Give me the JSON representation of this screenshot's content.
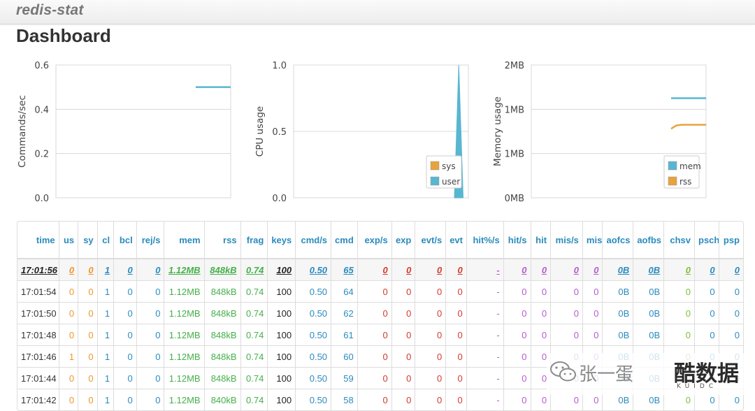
{
  "navbar": {
    "brand": "redis-stat"
  },
  "page": {
    "title": "Dashboard"
  },
  "colors": {
    "series_blue": "#58b6d0",
    "series_orange": "#e8a33d",
    "grid": "#d8d8d8",
    "header_blue": "#2a8bbd",
    "green": "#45b04a",
    "red": "#d33a2c",
    "purple": "#b45cd0",
    "orange": "#f0952a"
  },
  "chart_data": [
    {
      "type": "line",
      "ylabel": "Commands/sec",
      "ylim": [
        0,
        0.6
      ],
      "y_ticks": [
        "0.0",
        "0.2",
        "0.4",
        "0.6"
      ],
      "y_tick_values": [
        0,
        0.2,
        0.4,
        0.6
      ],
      "series": [
        {
          "color": "#58b6d0",
          "x": [
            0.8,
            0.85,
            0.9,
            0.95,
            1.0
          ],
          "values": [
            0.5,
            0.5,
            0.5,
            0.5,
            0.5
          ]
        }
      ],
      "legend": []
    },
    {
      "type": "area",
      "ylabel": "CPU usage",
      "ylim": [
        0,
        1.0
      ],
      "y_ticks": [
        "0.0",
        "0.5",
        "1.0"
      ],
      "y_tick_values": [
        0,
        0.5,
        1.0
      ],
      "series": [
        {
          "name": "sys",
          "color": "#e8a33d",
          "x": [
            0.92,
            0.945,
            0.97
          ],
          "values": [
            0,
            0,
            0
          ]
        },
        {
          "name": "user",
          "color": "#58b6d0",
          "x": [
            0.92,
            0.945,
            0.97
          ],
          "values": [
            0,
            1.0,
            0
          ]
        }
      ],
      "legend": [
        "sys",
        "user"
      ],
      "legend_position": "bottom-right"
    },
    {
      "type": "line",
      "ylabel": "Memory usage",
      "ylim": [
        0,
        2
      ],
      "y_ticks": [
        "0MB",
        "1MB",
        "1MB",
        "2MB"
      ],
      "y_tick_values": [
        0,
        0.667,
        1.333,
        2
      ],
      "series": [
        {
          "name": "mem",
          "color": "#58b6d0",
          "x": [
            0.8,
            0.85,
            0.9,
            0.95,
            1.0
          ],
          "values": [
            1.5,
            1.5,
            1.5,
            1.5,
            1.5
          ]
        },
        {
          "name": "rss",
          "color": "#e8a33d",
          "x": [
            0.8,
            0.83,
            0.86,
            0.9,
            0.95,
            1.0
          ],
          "values": [
            1.04,
            1.09,
            1.1,
            1.1,
            1.1,
            1.1
          ]
        }
      ],
      "legend": [
        "mem",
        "rss"
      ],
      "legend_position": "bottom-right"
    }
  ],
  "table": {
    "columns": [
      {
        "key": "time",
        "label": "time",
        "cls": "c-time"
      },
      {
        "key": "us",
        "label": "us",
        "cls": "c-orange"
      },
      {
        "key": "sy",
        "label": "sy",
        "cls": "c-orange"
      },
      {
        "key": "cl",
        "label": "cl",
        "cls": "c-blue"
      },
      {
        "key": "bcl",
        "label": "bcl",
        "cls": "c-blue"
      },
      {
        "key": "rejs",
        "label": "rej/s",
        "cls": "c-blue"
      },
      {
        "key": "mem",
        "label": "mem",
        "cls": "c-green"
      },
      {
        "key": "rss",
        "label": "rss",
        "cls": "c-green"
      },
      {
        "key": "frag",
        "label": "frag",
        "cls": "c-green"
      },
      {
        "key": "keys",
        "label": "keys",
        "cls": "c-black"
      },
      {
        "key": "cmds",
        "label": "cmd/s",
        "cls": "c-lblue"
      },
      {
        "key": "cmd",
        "label": "cmd",
        "cls": "c-lblue"
      },
      {
        "key": "exps",
        "label": "exp/s",
        "cls": "c-red"
      },
      {
        "key": "exp",
        "label": "exp",
        "cls": "c-red"
      },
      {
        "key": "evts",
        "label": "evt/s",
        "cls": "c-red"
      },
      {
        "key": "evt",
        "label": "evt",
        "cls": "c-red"
      },
      {
        "key": "hitpct",
        "label": "hit%/s",
        "cls": "c-purple"
      },
      {
        "key": "hits",
        "label": "hit/s",
        "cls": "c-purple"
      },
      {
        "key": "hit",
        "label": "hit",
        "cls": "c-purple"
      },
      {
        "key": "miss",
        "label": "mis/s",
        "cls": "c-purple"
      },
      {
        "key": "mis",
        "label": "mis",
        "cls": "c-purple"
      },
      {
        "key": "aofcs",
        "label": "aofcs",
        "cls": "c-teal"
      },
      {
        "key": "aofbs",
        "label": "aofbs",
        "cls": "c-teal"
      },
      {
        "key": "chsv",
        "label": "chsv",
        "cls": "c-lime"
      },
      {
        "key": "psch",
        "label": "psch",
        "cls": "c-teal"
      },
      {
        "key": "psp",
        "label": "psp",
        "cls": "c-teal"
      }
    ],
    "rows": [
      [
        "17:01:56",
        "0",
        "0",
        "1",
        "0",
        "0",
        "1.12MB",
        "848kB",
        "0.74",
        "100",
        "0.50",
        "65",
        "0",
        "0",
        "0",
        "0",
        "-",
        "0",
        "0",
        "0",
        "0",
        "0B",
        "0B",
        "0",
        "0",
        "0"
      ],
      [
        "17:01:54",
        "0",
        "0",
        "1",
        "0",
        "0",
        "1.12MB",
        "848kB",
        "0.74",
        "100",
        "0.50",
        "64",
        "0",
        "0",
        "0",
        "0",
        "-",
        "0",
        "0",
        "0",
        "0",
        "0B",
        "0B",
        "0",
        "0",
        "0"
      ],
      [
        "17:01:50",
        "0",
        "0",
        "1",
        "0",
        "0",
        "1.12MB",
        "848kB",
        "0.74",
        "100",
        "0.50",
        "62",
        "0",
        "0",
        "0",
        "0",
        "-",
        "0",
        "0",
        "0",
        "0",
        "0B",
        "0B",
        "0",
        "0",
        "0"
      ],
      [
        "17:01:48",
        "0",
        "0",
        "1",
        "0",
        "0",
        "1.12MB",
        "848kB",
        "0.74",
        "100",
        "0.50",
        "61",
        "0",
        "0",
        "0",
        "0",
        "-",
        "0",
        "0",
        "0",
        "0",
        "0B",
        "0B",
        "0",
        "0",
        "0"
      ],
      [
        "17:01:46",
        "1",
        "0",
        "1",
        "0",
        "0",
        "1.12MB",
        "848kB",
        "0.74",
        "100",
        "0.50",
        "60",
        "0",
        "0",
        "0",
        "0",
        "-",
        "0",
        "0",
        "0",
        "0",
        "0B",
        "0B",
        "0",
        "0",
        "0"
      ],
      [
        "17:01:44",
        "0",
        "0",
        "1",
        "0",
        "0",
        "1.12MB",
        "848kB",
        "0.74",
        "100",
        "0.50",
        "59",
        "0",
        "0",
        "0",
        "0",
        "-",
        "0",
        "0",
        "0",
        "0",
        "0B",
        "0B",
        "0",
        "0",
        "0"
      ],
      [
        "17:01:42",
        "0",
        "0",
        "1",
        "0",
        "0",
        "1.12MB",
        "840kB",
        "0.74",
        "100",
        "0.50",
        "58",
        "0",
        "0",
        "0",
        "0",
        "-",
        "0",
        "0",
        "0",
        "0",
        "0B",
        "0B",
        "0",
        "0",
        "0"
      ]
    ]
  },
  "watermark": {
    "text": "张一蛋",
    "logo": "酷数据",
    "sub": "KUIDC"
  }
}
